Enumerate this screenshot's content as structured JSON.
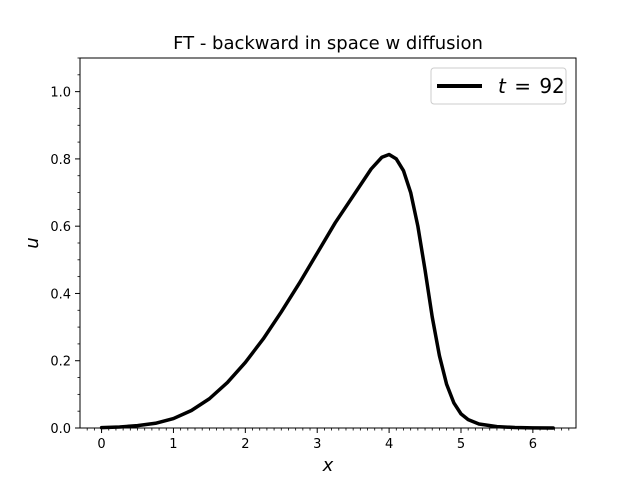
{
  "chart_data": {
    "type": "line",
    "title": "FT - backward in space w diffusion",
    "xlabel": "x",
    "ylabel": "u",
    "xlim": [
      -0.3,
      6.6
    ],
    "ylim": [
      0.0,
      1.1
    ],
    "xticks": [
      0,
      1,
      2,
      3,
      4,
      5,
      6
    ],
    "xtick_labels": [
      "0",
      "1",
      "2",
      "3",
      "4",
      "5",
      "6"
    ],
    "yticks": [
      0.0,
      0.2,
      0.4,
      0.6,
      0.8,
      1.0
    ],
    "ytick_labels": [
      "0.0",
      "0.2",
      "0.4",
      "0.6",
      "0.8",
      "1.0"
    ],
    "grid": false,
    "legend_position": "top-right",
    "series": [
      {
        "name": "t = 92",
        "legend_var": "t",
        "legend_eq": "=",
        "legend_val": "92",
        "color": "#000000",
        "x": [
          0.0,
          0.25,
          0.5,
          0.75,
          1.0,
          1.25,
          1.5,
          1.75,
          2.0,
          2.25,
          2.5,
          2.75,
          3.0,
          3.25,
          3.5,
          3.75,
          3.9,
          4.0,
          4.1,
          4.2,
          4.3,
          4.4,
          4.5,
          4.6,
          4.7,
          4.8,
          4.9,
          5.0,
          5.1,
          5.25,
          5.5,
          5.75,
          6.0,
          6.283
        ],
        "y": [
          0.001,
          0.003,
          0.007,
          0.014,
          0.028,
          0.052,
          0.087,
          0.135,
          0.195,
          0.265,
          0.345,
          0.43,
          0.52,
          0.61,
          0.69,
          0.77,
          0.805,
          0.813,
          0.8,
          0.765,
          0.7,
          0.6,
          0.47,
          0.33,
          0.215,
          0.13,
          0.075,
          0.042,
          0.025,
          0.012,
          0.004,
          0.0015,
          0.0004,
          0.0001
        ]
      }
    ]
  }
}
